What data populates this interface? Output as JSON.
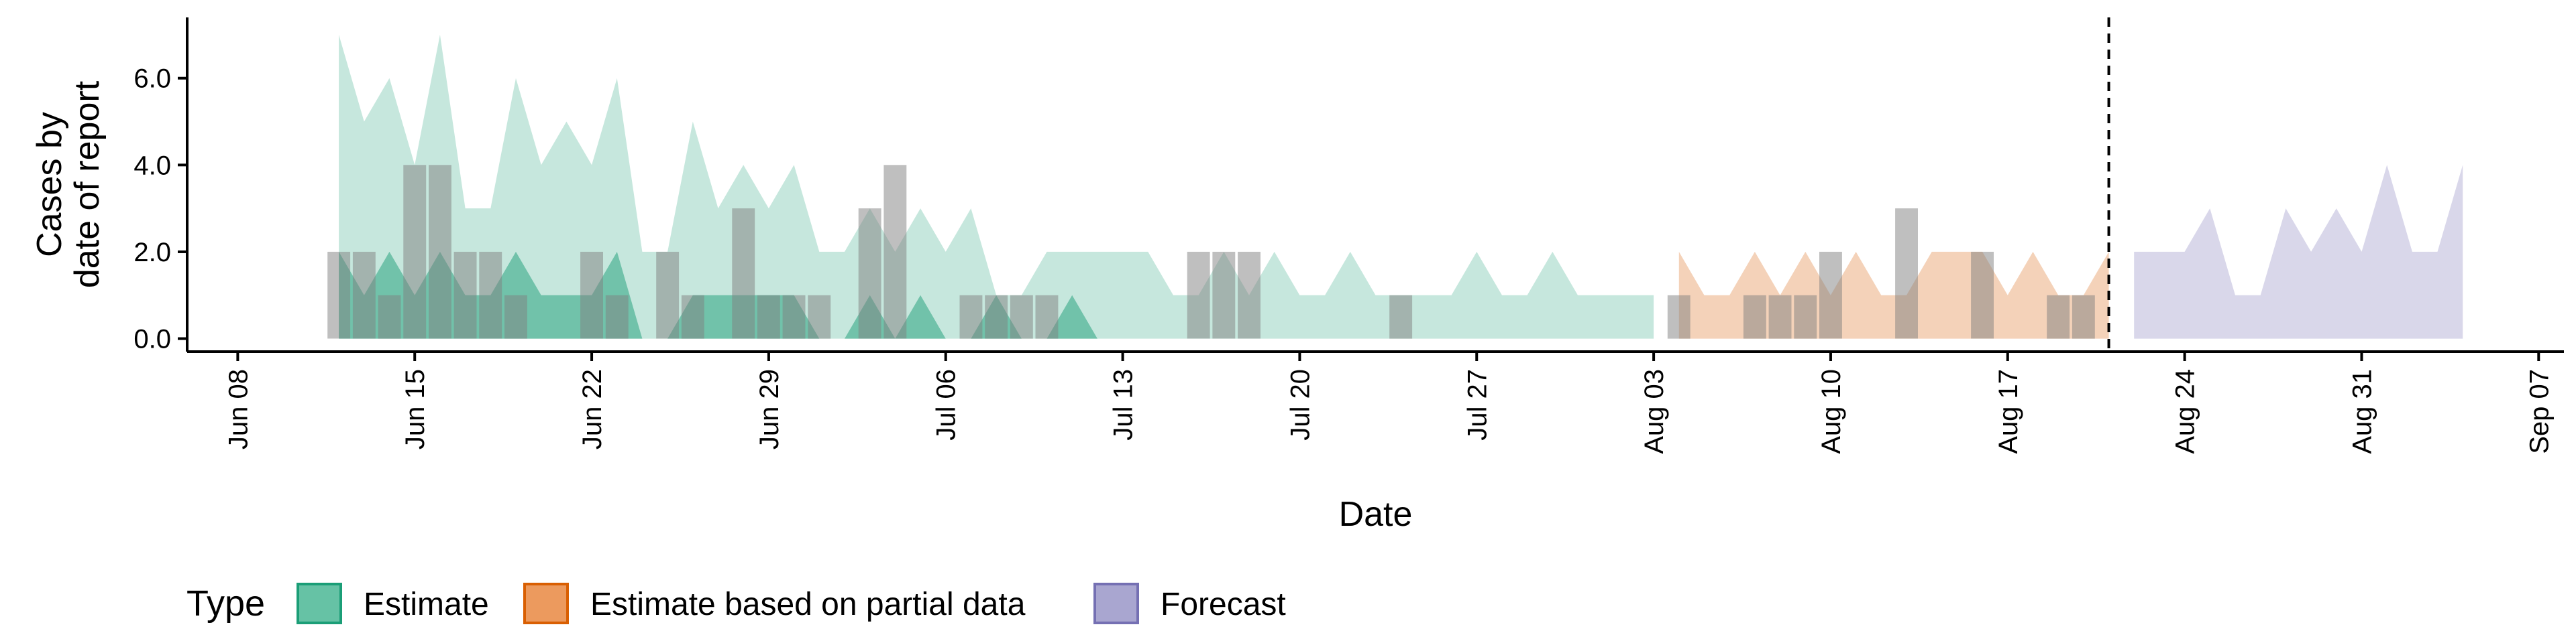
{
  "chart_data": {
    "type": "area",
    "xlabel": "Date",
    "ylabel_lines": [
      "Cases by",
      "date of report"
    ],
    "y_ticks": [
      {
        "value": 0,
        "label": "0.0"
      },
      {
        "value": 2,
        "label": "2.0"
      },
      {
        "value": 4,
        "label": "4.0"
      },
      {
        "value": 6,
        "label": "6.0"
      }
    ],
    "ylim": [
      -0.3,
      7.4
    ],
    "xlim": [
      "2020-06-06",
      "2020-09-08"
    ],
    "x_ticks": [
      {
        "date": "2020-06-08",
        "label": "Jun 08"
      },
      {
        "date": "2020-06-15",
        "label": "Jun 15"
      },
      {
        "date": "2020-06-22",
        "label": "Jun 22"
      },
      {
        "date": "2020-06-29",
        "label": "Jun 29"
      },
      {
        "date": "2020-07-06",
        "label": "Jul 06"
      },
      {
        "date": "2020-07-13",
        "label": "Jul 13"
      },
      {
        "date": "2020-07-20",
        "label": "Jul 20"
      },
      {
        "date": "2020-07-27",
        "label": "Jul 27"
      },
      {
        "date": "2020-08-03",
        "label": "Aug 03"
      },
      {
        "date": "2020-08-10",
        "label": "Aug 10"
      },
      {
        "date": "2020-08-17",
        "label": "Aug 17"
      },
      {
        "date": "2020-08-24",
        "label": "Aug 24"
      },
      {
        "date": "2020-08-31",
        "label": "Aug 31"
      },
      {
        "date": "2020-09-07",
        "label": "Sep 07"
      }
    ],
    "forecast_line_date": "2020-08-21",
    "legend": {
      "title": "Type",
      "position": "bottom",
      "entries": [
        {
          "label": "Estimate",
          "fill": "#66c2a5",
          "stroke": "#1b9e77"
        },
        {
          "label": "Estimate based on partial data",
          "fill": "#ec9a5e",
          "stroke": "#d95f02"
        },
        {
          "label": "Forecast",
          "fill": "#a9a6d0",
          "stroke": "#7570b3"
        }
      ]
    },
    "series": [
      {
        "type": "Estimate",
        "band": "outer",
        "color": "#1b9e77",
        "opacity": 0.25,
        "x": [
          "2020-06-12",
          "2020-06-13",
          "2020-06-14",
          "2020-06-15",
          "2020-06-16",
          "2020-06-17",
          "2020-06-18",
          "2020-06-19",
          "2020-06-20",
          "2020-06-21",
          "2020-06-22",
          "2020-06-23",
          "2020-06-24",
          "2020-06-25",
          "2020-06-26",
          "2020-06-27",
          "2020-06-28",
          "2020-06-29",
          "2020-06-30",
          "2020-07-01",
          "2020-07-02",
          "2020-07-03",
          "2020-07-04",
          "2020-07-05",
          "2020-07-06",
          "2020-07-07",
          "2020-07-08",
          "2020-07-09",
          "2020-07-10",
          "2020-07-11",
          "2020-07-12",
          "2020-07-13",
          "2020-07-14",
          "2020-07-15",
          "2020-07-16",
          "2020-07-17",
          "2020-07-18",
          "2020-07-19",
          "2020-07-20",
          "2020-07-21",
          "2020-07-22",
          "2020-07-23",
          "2020-07-24",
          "2020-07-25",
          "2020-07-26",
          "2020-07-27",
          "2020-07-28",
          "2020-07-29",
          "2020-07-30",
          "2020-07-31",
          "2020-08-01",
          "2020-08-02",
          "2020-08-03"
        ],
        "lower": [
          0,
          0,
          0,
          0,
          0,
          0,
          0,
          0,
          0,
          0,
          0,
          0,
          0,
          0,
          0,
          0,
          0,
          0,
          0,
          0,
          0,
          0,
          0,
          0,
          0,
          0,
          0,
          0,
          0,
          0,
          0,
          0,
          0,
          0,
          0,
          0,
          0,
          0,
          0,
          0,
          0,
          0,
          0,
          0,
          0,
          0,
          0,
          0,
          0,
          0,
          0,
          0,
          0
        ],
        "upper": [
          7,
          5,
          6,
          4,
          7,
          3,
          3,
          6,
          4,
          5,
          4,
          6,
          2,
          2,
          5,
          3,
          4,
          3,
          4,
          2,
          2,
          3,
          2,
          3,
          2,
          3,
          1,
          1,
          2,
          2,
          2,
          2,
          2,
          1,
          1,
          2,
          1,
          2,
          1,
          1,
          2,
          1,
          1,
          1,
          1,
          2,
          1,
          1,
          2,
          1,
          1,
          1,
          1
        ]
      },
      {
        "type": "Estimate",
        "band": "inner",
        "color": "#1b9e77",
        "opacity": 0.5,
        "x": [
          "2020-06-12",
          "2020-06-13",
          "2020-06-14",
          "2020-06-15",
          "2020-06-16",
          "2020-06-17",
          "2020-06-18",
          "2020-06-19",
          "2020-06-20",
          "2020-06-21",
          "2020-06-22",
          "2020-06-23",
          "2020-06-24",
          "2020-06-25",
          "2020-06-26",
          "2020-06-27",
          "2020-06-28",
          "2020-06-29",
          "2020-06-30",
          "2020-07-01",
          "2020-07-02",
          "2020-07-03",
          "2020-07-04",
          "2020-07-05",
          "2020-07-06",
          "2020-07-07",
          "2020-07-08",
          "2020-07-09",
          "2020-07-10",
          "2020-07-11",
          "2020-07-12",
          "2020-07-13",
          "2020-07-14",
          "2020-07-15",
          "2020-07-16",
          "2020-07-17",
          "2020-07-18",
          "2020-07-19",
          "2020-07-20",
          "2020-07-21",
          "2020-07-22",
          "2020-07-23",
          "2020-07-24",
          "2020-07-25",
          "2020-07-26",
          "2020-07-27",
          "2020-07-28",
          "2020-07-29",
          "2020-07-30",
          "2020-07-31",
          "2020-08-01",
          "2020-08-02",
          "2020-08-03"
        ],
        "lower": [
          0,
          0,
          0,
          0,
          0,
          0,
          0,
          0,
          0,
          0,
          0,
          0,
          0,
          0,
          0,
          0,
          0,
          0,
          0,
          0,
          0,
          0,
          0,
          0,
          0,
          0,
          0,
          0,
          0,
          0,
          0,
          0,
          0,
          0,
          0,
          0,
          0,
          0,
          0,
          0,
          0,
          0,
          0,
          0,
          0,
          0,
          0,
          0,
          0,
          0,
          0,
          0,
          0
        ],
        "upper": [
          2,
          1,
          2,
          1,
          2,
          1,
          1,
          2,
          1,
          1,
          1,
          2,
          0,
          0,
          1,
          1,
          1,
          1,
          1,
          0,
          0,
          1,
          0,
          1,
          0,
          0,
          1,
          0,
          0,
          1,
          0,
          0,
          0,
          0,
          0,
          0,
          0,
          0,
          0,
          0,
          0,
          0,
          0,
          0,
          0,
          0,
          0,
          0,
          0,
          0,
          0,
          0,
          0
        ]
      },
      {
        "type": "Estimate based on partial data",
        "band": "outer",
        "color": "#d95f02",
        "opacity": 0.28,
        "x": [
          "2020-08-04",
          "2020-08-05",
          "2020-08-06",
          "2020-08-07",
          "2020-08-08",
          "2020-08-09",
          "2020-08-10",
          "2020-08-11",
          "2020-08-12",
          "2020-08-13",
          "2020-08-14",
          "2020-08-15",
          "2020-08-16",
          "2020-08-17",
          "2020-08-18",
          "2020-08-19",
          "2020-08-20",
          "2020-08-21"
        ],
        "lower": [
          0,
          0,
          0,
          0,
          0,
          0,
          0,
          0,
          0,
          0,
          0,
          0,
          0,
          0,
          0,
          0,
          0,
          0
        ],
        "upper": [
          2,
          1,
          1,
          2,
          1,
          2,
          1,
          2,
          1,
          1,
          2,
          2,
          2,
          1,
          2,
          1,
          1,
          2
        ]
      },
      {
        "type": "Forecast",
        "band": "outer",
        "color": "#7570b3",
        "opacity": 0.28,
        "x": [
          "2020-08-22",
          "2020-08-23",
          "2020-08-24",
          "2020-08-25",
          "2020-08-26",
          "2020-08-27",
          "2020-08-28",
          "2020-08-29",
          "2020-08-30",
          "2020-08-31",
          "2020-09-01",
          "2020-09-02",
          "2020-09-03",
          "2020-09-04"
        ],
        "lower": [
          0,
          0,
          0,
          0,
          0,
          0,
          0,
          0,
          0,
          0,
          0,
          0,
          0,
          0
        ],
        "upper": [
          2,
          2,
          2,
          3,
          1,
          1,
          3,
          2,
          3,
          2,
          4,
          2,
          2,
          4
        ]
      }
    ],
    "reported_cases": {
      "color": "#808080",
      "opacity": 0.5,
      "x": [
        "2020-06-12",
        "2020-06-13",
        "2020-06-14",
        "2020-06-15",
        "2020-06-16",
        "2020-06-17",
        "2020-06-18",
        "2020-06-19",
        "2020-06-20",
        "2020-06-21",
        "2020-06-22",
        "2020-06-23",
        "2020-06-24",
        "2020-06-25",
        "2020-06-26",
        "2020-06-27",
        "2020-06-28",
        "2020-06-29",
        "2020-06-30",
        "2020-07-01",
        "2020-07-02",
        "2020-07-03",
        "2020-07-04",
        "2020-07-05",
        "2020-07-06",
        "2020-07-07",
        "2020-07-08",
        "2020-07-09",
        "2020-07-10",
        "2020-07-11",
        "2020-07-12",
        "2020-07-13",
        "2020-07-14",
        "2020-07-15",
        "2020-07-16",
        "2020-07-17",
        "2020-07-18",
        "2020-07-19",
        "2020-07-20",
        "2020-07-21",
        "2020-07-22",
        "2020-07-23",
        "2020-07-24",
        "2020-07-25",
        "2020-07-26",
        "2020-07-27",
        "2020-07-28",
        "2020-07-29",
        "2020-07-30",
        "2020-07-31",
        "2020-08-01",
        "2020-08-02",
        "2020-08-03",
        "2020-08-04",
        "2020-08-05",
        "2020-08-06",
        "2020-08-07",
        "2020-08-08",
        "2020-08-09",
        "2020-08-10",
        "2020-08-11",
        "2020-08-12",
        "2020-08-13",
        "2020-08-14",
        "2020-08-15",
        "2020-08-16",
        "2020-08-17",
        "2020-08-18",
        "2020-08-19",
        "2020-08-20",
        "2020-08-21"
      ],
      "y": [
        2,
        2,
        1,
        4,
        4,
        2,
        2,
        1,
        0,
        0,
        2,
        1,
        0,
        2,
        1,
        0,
        3,
        1,
        1,
        1,
        0,
        3,
        4,
        0,
        0,
        1,
        1,
        1,
        1,
        0,
        0,
        0,
        0,
        0,
        2,
        2,
        2,
        0,
        0,
        0,
        0,
        0,
        1,
        0,
        0,
        0,
        0,
        0,
        0,
        0,
        0,
        0,
        0,
        1,
        0,
        0,
        1,
        1,
        1,
        2,
        0,
        0,
        3,
        0,
        0,
        2,
        0,
        0,
        1,
        1,
        0
      ]
    }
  }
}
